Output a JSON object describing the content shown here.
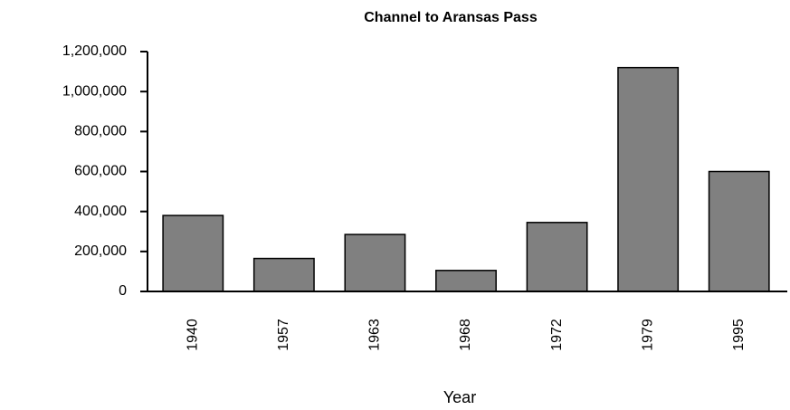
{
  "chart_data": {
    "type": "bar",
    "title": "Channel to Aransas Pass",
    "x_label": "Year",
    "categories": [
      "1940",
      "1957",
      "1963",
      "1968",
      "1972",
      "1979",
      "1995"
    ],
    "values": [
      380000,
      165000,
      285000,
      105000,
      345000,
      1120000,
      600000
    ],
    "color": "#808080",
    "ylim": [
      0,
      1200000
    ],
    "yticks": [
      0,
      {
        "value": 200000,
        "label": "200,000"
      },
      {
        "value": 400000,
        "label": "400,000"
      },
      {
        "value": 600000,
        "label": "600,000"
      },
      {
        "value": 800000,
        "label": "800,000"
      },
      {
        "value": 1000000,
        "label": "1,000,000"
      },
      {
        "value": 1200000,
        "label": "1,200,000"
      }
    ],
    "grid": false
  }
}
